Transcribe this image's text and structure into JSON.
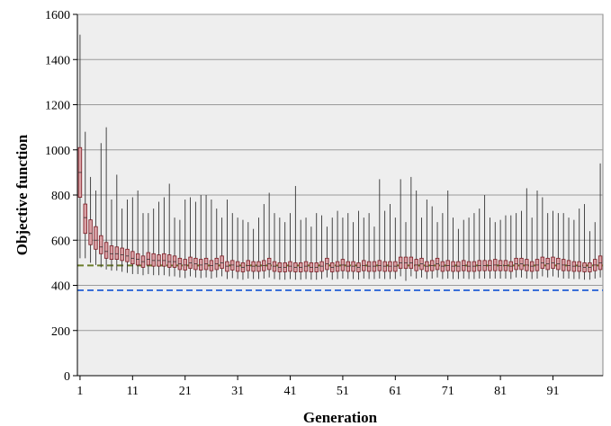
{
  "chart_data": {
    "type": "box",
    "title": "",
    "xlabel": "Generation",
    "ylabel": "Objective function",
    "ylim": [
      0,
      1600
    ],
    "yticks": [
      0,
      200,
      400,
      600,
      800,
      1000,
      1200,
      1400,
      1600
    ],
    "x_range": [
      1,
      100
    ],
    "xtick_labels": [
      "1",
      "11",
      "21",
      "31",
      "41",
      "51",
      "61",
      "71",
      "81",
      "91"
    ],
    "grid": "horizontal",
    "reference_lines": [
      {
        "value": 488,
        "style": "dashed",
        "color": "#6b7d2a"
      },
      {
        "value": 378,
        "style": "dashed",
        "color": "#3a6fd8"
      }
    ],
    "box_fill": "#d9a1a5",
    "box_stroke": "#7a1a22",
    "plot_background": "#eeeeee",
    "generations_upper_whisker": [
      1510,
      1080,
      880,
      820,
      1030,
      1100,
      780,
      890,
      740,
      780,
      790,
      820,
      720,
      720,
      740,
      770,
      790,
      850,
      700,
      690,
      780,
      790,
      770,
      800,
      800,
      780,
      740,
      700,
      780,
      720,
      700,
      690,
      680,
      650,
      700,
      760,
      810,
      720,
      700,
      680,
      720,
      840,
      690,
      700,
      660,
      720,
      710,
      660,
      700,
      730,
      700,
      720,
      680,
      730,
      700,
      720,
      660,
      870,
      730,
      760,
      700,
      870,
      680,
      880,
      820,
      700,
      780,
      750,
      680,
      720,
      820,
      700,
      650,
      690,
      700,
      720,
      740,
      800,
      700,
      680,
      690,
      710,
      710,
      720,
      730,
      830,
      700,
      820,
      790,
      720,
      730,
      720,
      720,
      700,
      690,
      740,
      760,
      640,
      680,
      940
    ],
    "generations_box_high": [
      1010,
      760,
      690,
      660,
      620,
      590,
      575,
      570,
      565,
      560,
      550,
      540,
      530,
      545,
      540,
      535,
      540,
      535,
      530,
      520,
      515,
      525,
      520,
      515,
      520,
      510,
      520,
      530,
      505,
      510,
      505,
      500,
      510,
      505,
      505,
      510,
      520,
      505,
      500,
      500,
      505,
      500,
      500,
      505,
      500,
      500,
      505,
      520,
      500,
      505,
      515,
      505,
      505,
      500,
      510,
      505,
      505,
      510,
      505,
      505,
      505,
      525,
      525,
      525,
      515,
      520,
      505,
      510,
      520,
      505,
      510,
      505,
      505,
      510,
      505,
      505,
      510,
      510,
      510,
      515,
      510,
      510,
      505,
      520,
      520,
      515,
      505,
      515,
      525,
      520,
      525,
      520,
      515,
      510,
      505,
      505,
      500,
      500,
      515,
      530
    ],
    "generations_median": [
      900,
      700,
      630,
      600,
      570,
      550,
      540,
      540,
      535,
      530,
      520,
      515,
      505,
      515,
      510,
      510,
      510,
      505,
      505,
      495,
      490,
      500,
      495,
      490,
      495,
      488,
      495,
      500,
      485,
      490,
      485,
      480,
      488,
      485,
      485,
      488,
      495,
      485,
      480,
      480,
      485,
      480,
      480,
      485,
      480,
      480,
      485,
      495,
      480,
      485,
      490,
      485,
      485,
      480,
      488,
      485,
      485,
      488,
      485,
      485,
      485,
      500,
      500,
      500,
      490,
      495,
      485,
      488,
      495,
      485,
      488,
      485,
      485,
      488,
      485,
      485,
      488,
      488,
      488,
      490,
      488,
      488,
      485,
      495,
      495,
      490,
      485,
      490,
      500,
      495,
      500,
      495,
      490,
      488,
      485,
      485,
      480,
      480,
      490,
      500
    ],
    "generations_box_low": [
      790,
      630,
      580,
      560,
      540,
      520,
      515,
      515,
      510,
      505,
      495,
      490,
      480,
      490,
      485,
      485,
      485,
      480,
      480,
      470,
      468,
      475,
      470,
      468,
      470,
      465,
      470,
      475,
      462,
      468,
      462,
      460,
      465,
      462,
      462,
      465,
      470,
      462,
      460,
      460,
      462,
      460,
      460,
      462,
      460,
      460,
      462,
      470,
      460,
      462,
      465,
      462,
      462,
      460,
      465,
      462,
      462,
      465,
      462,
      462,
      462,
      475,
      475,
      475,
      465,
      470,
      462,
      465,
      470,
      462,
      465,
      462,
      462,
      465,
      462,
      462,
      465,
      465,
      465,
      465,
      465,
      465,
      462,
      470,
      470,
      465,
      462,
      465,
      475,
      470,
      475,
      470,
      465,
      465,
      462,
      462,
      460,
      460,
      465,
      470
    ],
    "generations_lower_whisker": [
      520,
      520,
      500,
      490,
      480,
      470,
      465,
      465,
      460,
      455,
      450,
      450,
      445,
      450,
      445,
      445,
      445,
      440,
      440,
      435,
      432,
      440,
      435,
      432,
      435,
      430,
      435,
      440,
      428,
      432,
      428,
      425,
      430,
      428,
      428,
      430,
      435,
      428,
      425,
      425,
      428,
      425,
      425,
      428,
      425,
      425,
      428,
      435,
      425,
      428,
      430,
      428,
      428,
      425,
      430,
      428,
      428,
      430,
      428,
      428,
      428,
      440,
      420,
      440,
      430,
      435,
      428,
      430,
      435,
      428,
      430,
      428,
      428,
      430,
      428,
      428,
      430,
      430,
      430,
      430,
      430,
      430,
      428,
      435,
      435,
      430,
      428,
      430,
      440,
      435,
      440,
      435,
      430,
      430,
      428,
      428,
      425,
      425,
      430,
      435
    ]
  }
}
